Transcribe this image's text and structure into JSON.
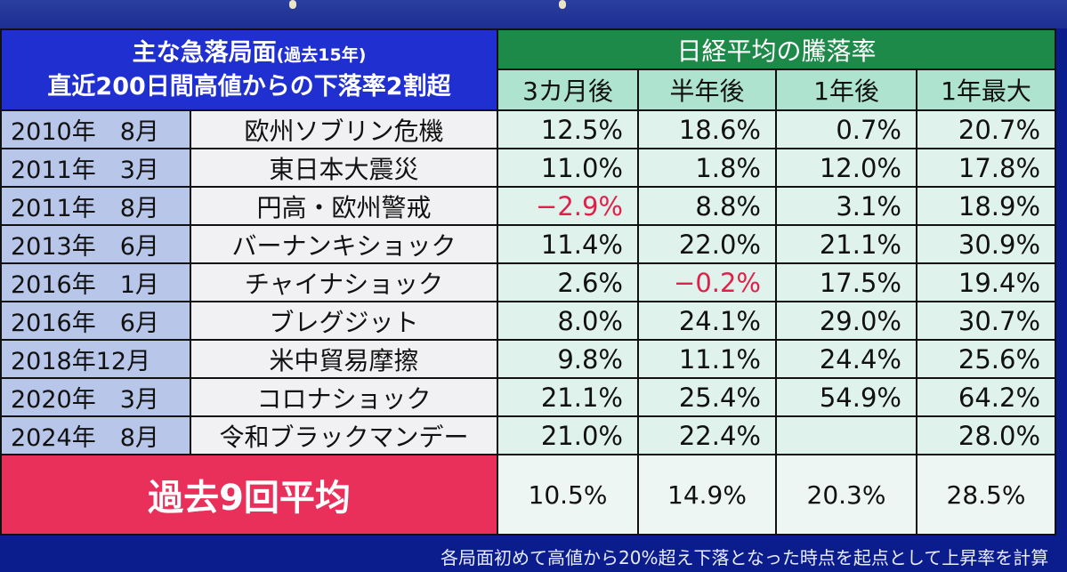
{
  "header": {
    "left_line1": "主な急落局面",
    "left_line1_small": "(過去15年)",
    "left_line2": "直近200日間高値からの下落率2割超",
    "right_title": "日経平均の騰落率",
    "columns": [
      "3カ月後",
      "半年後",
      "1年後",
      "1年最大"
    ]
  },
  "rows": [
    {
      "date": "2010年　8月",
      "event": "欧州ソブリン危機",
      "v": [
        "12.5%",
        "18.6%",
        "0.7%",
        "20.7%"
      ],
      "neg": [
        false,
        false,
        false,
        false
      ]
    },
    {
      "date": "2011年　3月",
      "event": "東日本大震災",
      "v": [
        "11.0%",
        "1.8%",
        "12.0%",
        "17.8%"
      ],
      "neg": [
        false,
        false,
        false,
        false
      ]
    },
    {
      "date": "2011年　8月",
      "event": "円高・欧州警戒",
      "v": [
        "−2.9%",
        "8.8%",
        "3.1%",
        "18.9%"
      ],
      "neg": [
        true,
        false,
        false,
        false
      ]
    },
    {
      "date": "2013年　6月",
      "event": "バーナンキショック",
      "v": [
        "11.4%",
        "22.0%",
        "21.1%",
        "30.9%"
      ],
      "neg": [
        false,
        false,
        false,
        false
      ]
    },
    {
      "date": "2016年　1月",
      "event": "チャイナショック",
      "v": [
        "2.6%",
        "−0.2%",
        "17.5%",
        "19.4%"
      ],
      "neg": [
        false,
        true,
        false,
        false
      ]
    },
    {
      "date": "2016年　6月",
      "event": "ブレグジット",
      "v": [
        "8.0%",
        "24.1%",
        "29.0%",
        "30.7%"
      ],
      "neg": [
        false,
        false,
        false,
        false
      ]
    },
    {
      "date": "2018年12月",
      "event": "米中貿易摩擦",
      "v": [
        "9.8%",
        "11.1%",
        "24.4%",
        "25.6%"
      ],
      "neg": [
        false,
        false,
        false,
        false
      ]
    },
    {
      "date": "2020年　3月",
      "event": "コロナショック",
      "v": [
        "21.1%",
        "25.4%",
        "54.9%",
        "64.2%"
      ],
      "neg": [
        false,
        false,
        false,
        false
      ]
    },
    {
      "date": "2024年　8月",
      "event": "令和ブラックマンデー",
      "v": [
        "21.0%",
        "22.4%",
        "",
        "28.0%"
      ],
      "neg": [
        false,
        false,
        false,
        false
      ]
    }
  ],
  "average": {
    "label": "過去9回平均",
    "v": [
      "10.5%",
      "14.9%",
      "20.3%",
      "28.5%"
    ]
  },
  "footnote": "各局面初めて高値から20%超え下落となった時点を起点として上昇率を計算"
}
